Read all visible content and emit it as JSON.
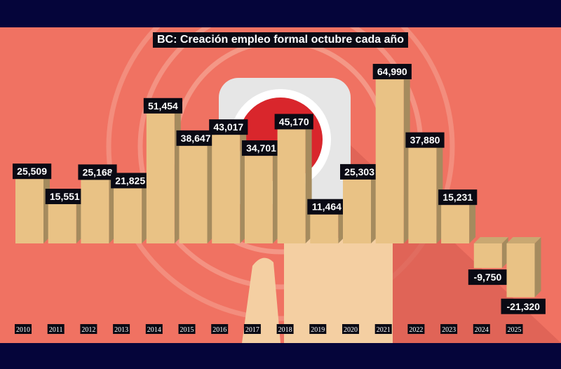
{
  "chart_data": {
    "type": "bar",
    "title": "BC: Creación empleo formal octubre cada año",
    "xlabel": "",
    "ylabel": "",
    "categories": [
      "2010",
      "2011",
      "2012",
      "2013",
      "2014",
      "2015",
      "2016",
      "2017",
      "2018",
      "2019",
      "2020",
      "2021",
      "2022",
      "2023",
      "2024",
      "2025"
    ],
    "values": [
      25509,
      15551,
      25168,
      21825,
      51454,
      38647,
      43017,
      34701,
      45170,
      11464,
      25303,
      64990,
      37880,
      15231,
      -9750,
      -21320
    ],
    "value_labels": [
      "25,509",
      "15,551",
      "25,168",
      "21,825",
      "51,454",
      "38,647",
      "43,017",
      "34,701",
      "45,170",
      "11,464",
      "25,303",
      "64,990",
      "37,880",
      "15,231",
      "-9,750",
      "-21,320"
    ],
    "ylim": [
      -25000,
      70000
    ],
    "grid": false,
    "colors": {
      "bar_front": "#e9c285",
      "bar_side": "#a58b5e",
      "background": "#f07262",
      "label_bg": "#0a0a14",
      "frame": "#05053a"
    }
  }
}
